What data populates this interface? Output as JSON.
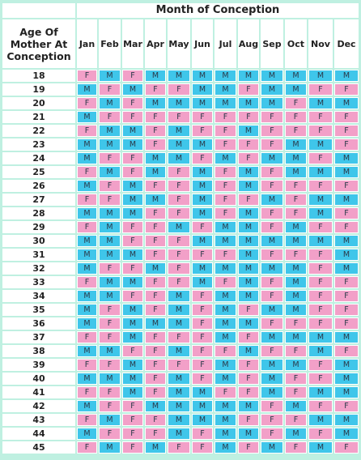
{
  "chart": {
    "title": "Month of Conception",
    "age_header": "Age Of Mother At Conception",
    "months": [
      "Jan",
      "Feb",
      "Mar",
      "Apr",
      "May",
      "Jun",
      "Jul",
      "Aug",
      "Sep",
      "Oct",
      "Nov",
      "Dec"
    ],
    "colors": {
      "F": "#f2a0c8",
      "M": "#3fc6ea",
      "border": "#bff0e1",
      "header_bg": "#ffffff"
    },
    "rows": [
      {
        "age": "18",
        "values": [
          "F",
          "M",
          "F",
          "M",
          "M",
          "M",
          "M",
          "M",
          "M",
          "M",
          "M",
          "M"
        ]
      },
      {
        "age": "19",
        "values": [
          "M",
          "F",
          "M",
          "F",
          "F",
          "M",
          "M",
          "F",
          "M",
          "M",
          "F",
          "F"
        ]
      },
      {
        "age": "20",
        "values": [
          "F",
          "M",
          "F",
          "M",
          "M",
          "M",
          "M",
          "M",
          "M",
          "F",
          "M",
          "M"
        ]
      },
      {
        "age": "21",
        "values": [
          "M",
          "F",
          "F",
          "F",
          "F",
          "F",
          "F",
          "F",
          "F",
          "F",
          "F",
          "F"
        ]
      },
      {
        "age": "22",
        "values": [
          "F",
          "M",
          "M",
          "F",
          "M",
          "F",
          "F",
          "M",
          "F",
          "F",
          "F",
          "F"
        ]
      },
      {
        "age": "23",
        "values": [
          "M",
          "M",
          "M",
          "F",
          "M",
          "M",
          "F",
          "F",
          "F",
          "M",
          "M",
          "F"
        ]
      },
      {
        "age": "24",
        "values": [
          "M",
          "F",
          "F",
          "M",
          "M",
          "F",
          "M",
          "F",
          "M",
          "M",
          "F",
          "M"
        ]
      },
      {
        "age": "25",
        "values": [
          "F",
          "M",
          "F",
          "M",
          "F",
          "M",
          "F",
          "M",
          "F",
          "M",
          "M",
          "M"
        ]
      },
      {
        "age": "26",
        "values": [
          "M",
          "F",
          "M",
          "F",
          "F",
          "M",
          "F",
          "M",
          "F",
          "F",
          "F",
          "F"
        ]
      },
      {
        "age": "27",
        "values": [
          "F",
          "F",
          "M",
          "M",
          "F",
          "M",
          "F",
          "F",
          "M",
          "F",
          "M",
          "M"
        ]
      },
      {
        "age": "28",
        "values": [
          "M",
          "M",
          "M",
          "F",
          "F",
          "M",
          "F",
          "M",
          "F",
          "F",
          "M",
          "F"
        ]
      },
      {
        "age": "29",
        "values": [
          "F",
          "M",
          "F",
          "F",
          "M",
          "F",
          "M",
          "M",
          "F",
          "M",
          "F",
          "F"
        ]
      },
      {
        "age": "30",
        "values": [
          "M",
          "M",
          "F",
          "F",
          "F",
          "M",
          "M",
          "M",
          "M",
          "M",
          "M",
          "M"
        ]
      },
      {
        "age": "31",
        "values": [
          "M",
          "M",
          "M",
          "F",
          "F",
          "F",
          "F",
          "M",
          "F",
          "F",
          "F",
          "M"
        ]
      },
      {
        "age": "32",
        "values": [
          "M",
          "F",
          "F",
          "M",
          "F",
          "M",
          "M",
          "M",
          "M",
          "M",
          "F",
          "M"
        ]
      },
      {
        "age": "33",
        "values": [
          "F",
          "M",
          "M",
          "F",
          "F",
          "M",
          "F",
          "M",
          "F",
          "M",
          "F",
          "F"
        ]
      },
      {
        "age": "34",
        "values": [
          "M",
          "M",
          "F",
          "F",
          "M",
          "F",
          "M",
          "M",
          "F",
          "M",
          "F",
          "F"
        ]
      },
      {
        "age": "35",
        "values": [
          "M",
          "F",
          "M",
          "F",
          "M",
          "F",
          "M",
          "F",
          "M",
          "M",
          "F",
          "F"
        ]
      },
      {
        "age": "36",
        "values": [
          "M",
          "F",
          "M",
          "M",
          "M",
          "F",
          "M",
          "M",
          "F",
          "F",
          "F",
          "F"
        ]
      },
      {
        "age": "37",
        "values": [
          "F",
          "F",
          "M",
          "F",
          "F",
          "F",
          "M",
          "F",
          "M",
          "M",
          "M",
          "M"
        ]
      },
      {
        "age": "38",
        "values": [
          "M",
          "M",
          "F",
          "F",
          "M",
          "F",
          "F",
          "M",
          "F",
          "F",
          "M",
          "F"
        ]
      },
      {
        "age": "39",
        "values": [
          "F",
          "F",
          "M",
          "F",
          "F",
          "F",
          "M",
          "F",
          "M",
          "M",
          "F",
          "M"
        ]
      },
      {
        "age": "40",
        "values": [
          "M",
          "M",
          "M",
          "F",
          "M",
          "F",
          "M",
          "F",
          "M",
          "F",
          "F",
          "M"
        ]
      },
      {
        "age": "41",
        "values": [
          "F",
          "F",
          "M",
          "F",
          "M",
          "M",
          "F",
          "F",
          "M",
          "F",
          "M",
          "M"
        ]
      },
      {
        "age": "42",
        "values": [
          "M",
          "F",
          "F",
          "M",
          "M",
          "M",
          "M",
          "M",
          "F",
          "M",
          "F",
          "F"
        ]
      },
      {
        "age": "43",
        "values": [
          "F",
          "M",
          "F",
          "F",
          "M",
          "M",
          "M",
          "F",
          "F",
          "F",
          "M",
          "M"
        ]
      },
      {
        "age": "44",
        "values": [
          "M",
          "F",
          "F",
          "F",
          "M",
          "F",
          "M",
          "M",
          "F",
          "M",
          "F",
          "M"
        ]
      },
      {
        "age": "45",
        "values": [
          "F",
          "M",
          "F",
          "M",
          "F",
          "F",
          "M",
          "F",
          "M",
          "F",
          "M",
          "F"
        ]
      }
    ]
  }
}
